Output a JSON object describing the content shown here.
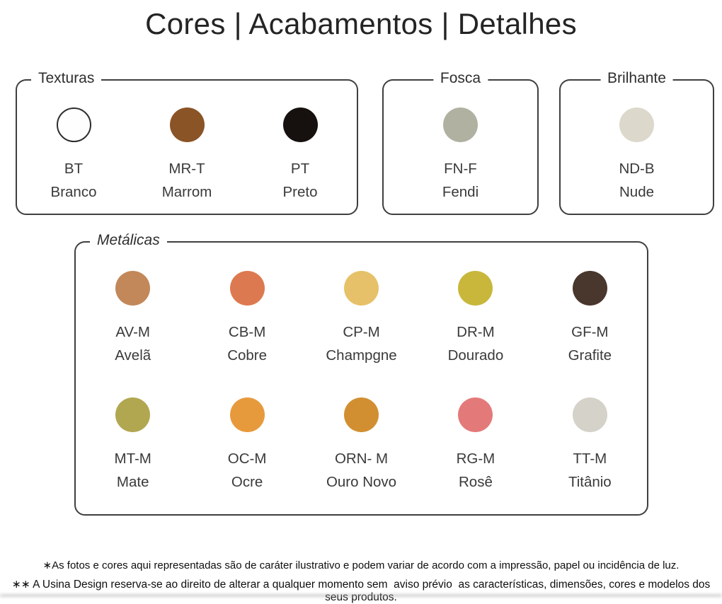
{
  "title": "Cores | Acabamentos | Detalhes",
  "groups": [
    {
      "label": "Texturas",
      "swatches": [
        {
          "code": "BT",
          "name": "Branco",
          "color": "#fefefe"
        },
        {
          "code": "MR-T",
          "name": "Marrom",
          "color": "#8a5426"
        },
        {
          "code": "PT",
          "name": "Preto",
          "color": "#16100f"
        }
      ]
    },
    {
      "label": "Fosca",
      "swatches": [
        {
          "code": "FN-F",
          "name": "Fendi",
          "color": "#b1b1a2"
        }
      ]
    },
    {
      "label": "Brilhante",
      "swatches": [
        {
          "code": "ND-B",
          "name": "Nude",
          "color": "#dcd8cb"
        }
      ]
    },
    {
      "label": "Metálicas",
      "rows": [
        [
          {
            "code": "AV-M",
            "name": "Avelã",
            "color": "#c2885a"
          },
          {
            "code": "CB-M",
            "name": "Cobre",
            "color": "#dd7950"
          },
          {
            "code": "CP-M",
            "name": "Champgne",
            "color": "#e6c169"
          },
          {
            "code": "DR-M",
            "name": "Dourado",
            "color": "#c8b73b"
          },
          {
            "code": "GF-M",
            "name": "Grafite",
            "color": "#49362c"
          }
        ],
        [
          {
            "code": "MT-M",
            "name": "Mate",
            "color": "#b2a751"
          },
          {
            "code": "OC-M",
            "name": "Ocre",
            "color": "#e79a3c"
          },
          {
            "code": "ORN- M",
            "name": "Ouro Novo",
            "color": "#d28f31"
          },
          {
            "code": "RG-M",
            "name": "Rosê",
            "color": "#e37a79"
          },
          {
            "code": "TT-M",
            "name": "Titânio",
            "color": "#d4d2c9"
          }
        ]
      ]
    }
  ],
  "footnotes": [
    "∗As fotos e cores aqui representadas são de caráter ilustrativo e podem variar de acordo com a impressão, papel ou incidência de luz.",
    "∗∗ A Usina Design reserva-se ao direito de alterar a qualquer momento sem  aviso prévio  as características, dimensões, cores e modelos dos seus produtos."
  ]
}
